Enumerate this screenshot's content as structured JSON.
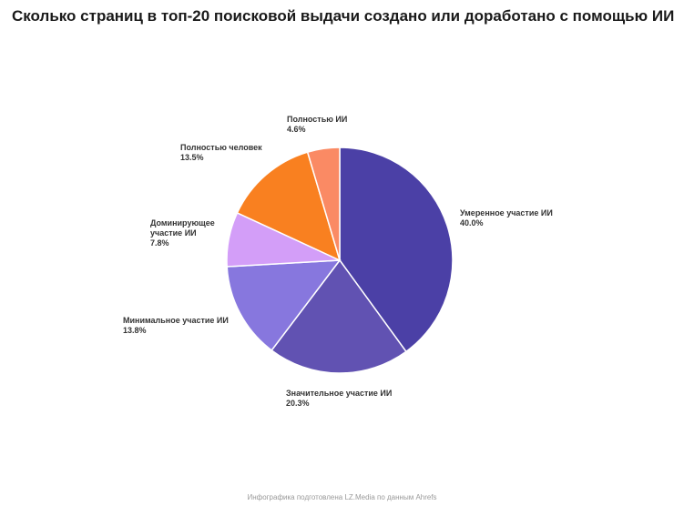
{
  "chart_data": {
    "type": "pie",
    "title": "Сколько страниц в топ-20 поисковой выдачи создано или доработано с помощью ИИ",
    "source": "Инфографика подготовлена LZ.Media по данным Ahrefs",
    "categories": [
      "Умеренное участие ИИ",
      "Значительное участие ИИ",
      "Минимальное участие ИИ",
      "Доминирующее участие ИИ",
      "Полностью человек",
      "Полностью ИИ"
    ],
    "values": [
      40.0,
      20.3,
      13.8,
      7.8,
      13.5,
      4.6
    ],
    "value_labels": [
      "40.0%",
      "20.3%",
      "13.8%",
      "7.8%",
      "13.5%",
      "4.6%"
    ],
    "colors": [
      "#4b40a6",
      "#6152b2",
      "#8777de",
      "#d39ef8",
      "#f98020",
      "#fa8a64"
    ]
  }
}
